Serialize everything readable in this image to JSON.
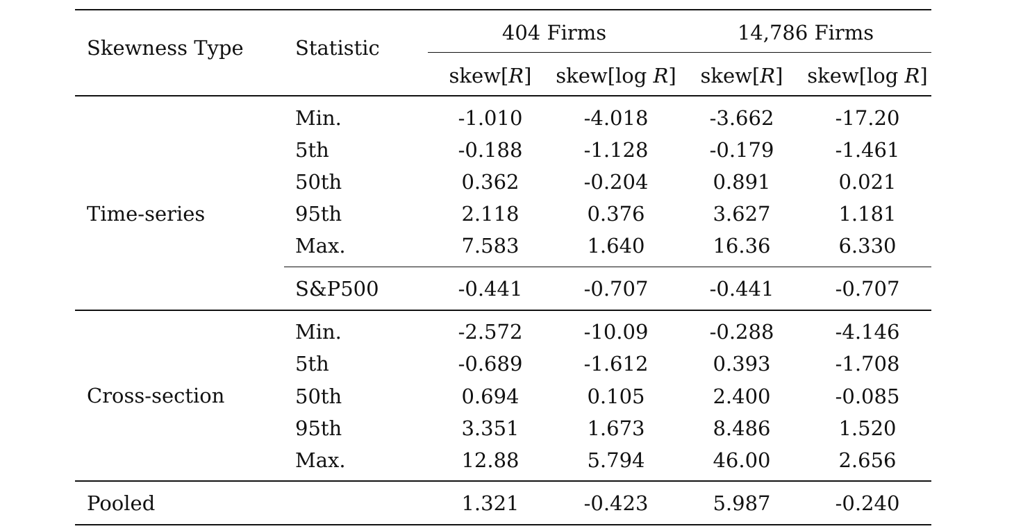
{
  "header": {
    "skewness_type": "Skewness Type",
    "statistic": "Statistic",
    "group1": "404 Firms",
    "group2": "14,786 Firms",
    "col_skew_r_prefix": "skew[",
    "col_r": "R",
    "col_skew_r_suffix": "]",
    "col_skew_log_prefix": "skew[log ",
    "col_log_r": "R",
    "col_skew_log_suffix": "]"
  },
  "time_series": {
    "label": "Time-series",
    "rows": [
      {
        "stat": "Min.",
        "v": [
          "-1.010",
          "-4.018",
          "-3.662",
          "-17.20"
        ]
      },
      {
        "stat": "5th",
        "v": [
          "-0.188",
          "-1.128",
          "-0.179",
          "-1.461"
        ]
      },
      {
        "stat": "50th",
        "v": [
          "0.362",
          "-0.204",
          "0.891",
          "0.021"
        ]
      },
      {
        "stat": "95th",
        "v": [
          "2.118",
          "0.376",
          "3.627",
          "1.181"
        ]
      },
      {
        "stat": "Max.",
        "v": [
          "7.583",
          "1.640",
          "16.36",
          "6.330"
        ]
      }
    ],
    "sp500": {
      "stat": "S&P500",
      "v": [
        "-0.441",
        "-0.707",
        "-0.441",
        "-0.707"
      ]
    }
  },
  "cross_section": {
    "label": "Cross-section",
    "rows": [
      {
        "stat": "Min.",
        "v": [
          "-2.572",
          "-10.09",
          "-0.288",
          "-4.146"
        ]
      },
      {
        "stat": "5th",
        "v": [
          "-0.689",
          "-1.612",
          "0.393",
          "-1.708"
        ]
      },
      {
        "stat": "50th",
        "v": [
          "0.694",
          "0.105",
          "2.400",
          "-0.085"
        ]
      },
      {
        "stat": "95th",
        "v": [
          "3.351",
          "1.673",
          "8.486",
          "1.520"
        ]
      },
      {
        "stat": "Max.",
        "v": [
          "12.88",
          "5.794",
          "46.00",
          "2.656"
        ]
      }
    ]
  },
  "pooled": {
    "label": "Pooled",
    "v": [
      "1.321",
      "-0.423",
      "5.987",
      "-0.240"
    ]
  }
}
